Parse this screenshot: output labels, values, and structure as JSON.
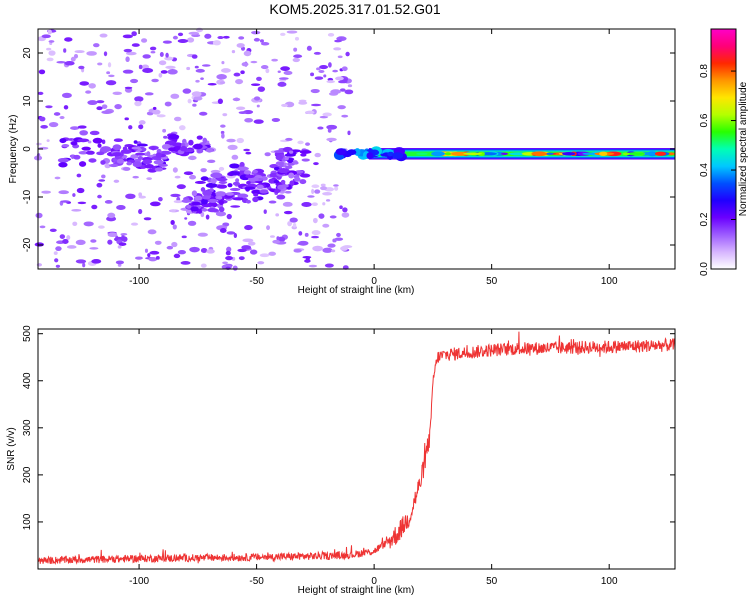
{
  "title": "KOM5.2025.317.01.52.G01",
  "chart_data": [
    {
      "type": "heatmap",
      "title": "KOM5.2025.317.01.52.G01",
      "xlabel": "Height of straight line (km)",
      "ylabel": "Frequency (Hz)",
      "xlim": [
        -143,
        128
      ],
      "ylim": [
        -25,
        25
      ],
      "xticks": [
        -100,
        -50,
        0,
        50,
        100
      ],
      "yticks": [
        -20,
        -10,
        0,
        10,
        20
      ],
      "colorbar": {
        "label": "Normalized spectral amplitude",
        "range": [
          0,
          0.97
        ],
        "ticks": [
          0.0,
          0.2,
          0.4,
          0.6,
          0.8
        ],
        "tick_labels": [
          "0.0",
          "0.2",
          "0.4",
          "0.6",
          "0.8"
        ],
        "colormap": [
          "#ffffff",
          "#d6b4ff",
          "#9d5cff",
          "#6a00ff",
          "#2000ff",
          "#0050ff",
          "#00c8ff",
          "#00ffb4",
          "#28ff00",
          "#b4ff00",
          "#ffe600",
          "#ff9600",
          "#ff2800",
          "#ff0078",
          "#ff00c8"
        ]
      },
      "features": [
        {
          "name": "strong signal band",
          "x": [
            -15,
            128
          ],
          "y_center": -1,
          "y_half_width": 1.2,
          "amplitude": [
            0.2,
            0.9
          ]
        },
        {
          "name": "scattered low-amplitude noise",
          "x": [
            -143,
            -10
          ],
          "y": [
            -25,
            25
          ],
          "amplitude": [
            0.05,
            0.2
          ]
        }
      ]
    },
    {
      "type": "line",
      "xlabel": "Height of straight line (km)",
      "ylabel": "SNR (v/v)",
      "xlim": [
        -143,
        128
      ],
      "ylim": [
        0,
        510
      ],
      "xticks": [
        -100,
        -50,
        0,
        50,
        100
      ],
      "yticks": [
        100,
        200,
        300,
        400,
        500
      ],
      "series": [
        {
          "name": "SNR",
          "color": "#ee3333",
          "x": [
            -143,
            -100,
            -50,
            -20,
            -10,
            0,
            5,
            10,
            15,
            20,
            24,
            25,
            27,
            30,
            40,
            50,
            60,
            80,
            100,
            128
          ],
          "y": [
            18,
            22,
            25,
            28,
            30,
            38,
            55,
            75,
            110,
            190,
            290,
            400,
            450,
            455,
            460,
            465,
            468,
            470,
            472,
            476
          ]
        }
      ]
    }
  ]
}
